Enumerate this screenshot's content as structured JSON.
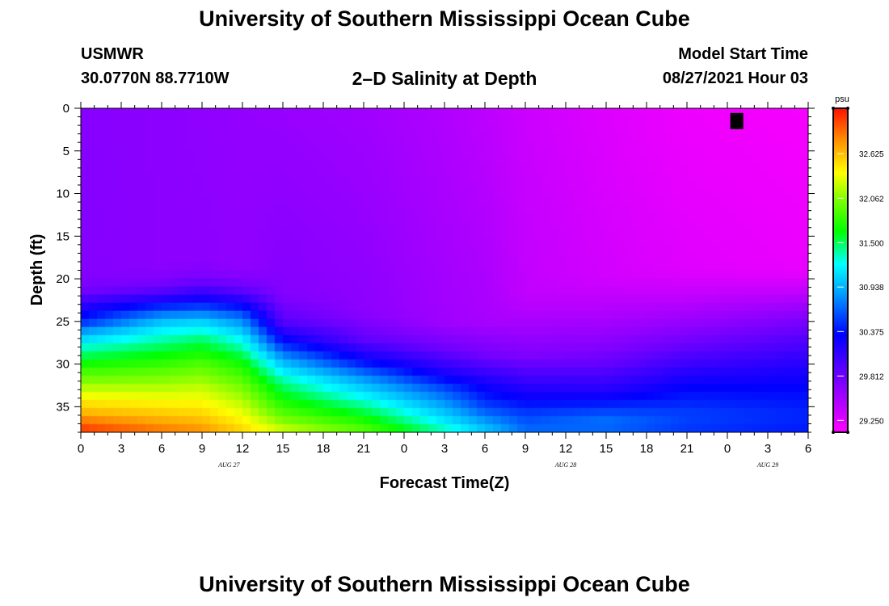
{
  "header": {
    "title": "University of Southern Mississippi Ocean Cube",
    "station": "USMWR",
    "coords": "30.0770N  88.7710W",
    "plot_title": "2–D Salinity at Depth",
    "model_label": "Model Start Time",
    "model_time": "08/27/2021 Hour 03",
    "footer_title": "University of Southern Mississippi Ocean Cube"
  },
  "chart_data": {
    "type": "heatmap",
    "title": "2–D Salinity at Depth",
    "xlabel": "Forecast Time(Z)",
    "ylabel": "Depth (ft)",
    "x_range_hours": [
      0,
      54
    ],
    "y_range_ft": [
      0,
      38
    ],
    "x_ticks": [
      "0",
      "3",
      "6",
      "9",
      "12",
      "15",
      "18",
      "21",
      "0",
      "3",
      "6",
      "9",
      "12",
      "15",
      "18",
      "21",
      "0",
      "3",
      "6"
    ],
    "y_ticks": [
      "0",
      "5",
      "10",
      "15",
      "20",
      "25",
      "30",
      "35"
    ],
    "date_labels": [
      {
        "text": "AUG  27",
        "hour": 11
      },
      {
        "text": "AUG  28",
        "hour": 36
      },
      {
        "text": "AUG  29",
        "hour": 51
      }
    ],
    "colorbar": {
      "unit": "psu",
      "range": [
        29.1,
        33.2
      ],
      "ticks": [
        "32.625",
        "32.062",
        "31.500",
        "30.938",
        "30.375",
        "29.812",
        "29.250"
      ]
    },
    "marker": {
      "hour": 48.7,
      "depth_ft": 1.5,
      "color": "#000000"
    },
    "salinity_profiles": [
      {
        "hour": 0,
        "values": [
          [
            0,
            29.68
          ],
          [
            20,
            29.7
          ],
          [
            21.5,
            29.78
          ],
          [
            23,
            30.1
          ],
          [
            25,
            30.45
          ],
          [
            26.5,
            30.95
          ],
          [
            28,
            31.3
          ],
          [
            30,
            31.7
          ],
          [
            32,
            32.05
          ],
          [
            34,
            32.4
          ],
          [
            36,
            32.7
          ],
          [
            37,
            32.95
          ],
          [
            38,
            33.1
          ]
        ]
      },
      {
        "hour": 6,
        "values": [
          [
            0,
            29.66
          ],
          [
            19,
            29.66
          ],
          [
            21,
            29.8
          ],
          [
            22.5,
            30.2
          ],
          [
            24,
            30.7
          ],
          [
            25.5,
            31.1
          ],
          [
            28,
            31.5
          ],
          [
            31,
            31.95
          ],
          [
            34,
            32.35
          ],
          [
            36,
            32.6
          ],
          [
            38,
            32.9
          ]
        ]
      },
      {
        "hour": 9,
        "values": [
          [
            0,
            29.64
          ],
          [
            18,
            29.66
          ],
          [
            20,
            29.75
          ],
          [
            22,
            30.15
          ],
          [
            23.5,
            30.6
          ],
          [
            25,
            31.05
          ],
          [
            27,
            31.45
          ],
          [
            30,
            31.9
          ],
          [
            33,
            32.25
          ],
          [
            36,
            32.55
          ],
          [
            38,
            32.8
          ]
        ]
      },
      {
        "hour": 12,
        "values": [
          [
            0,
            29.62
          ],
          [
            19,
            29.64
          ],
          [
            21,
            29.8
          ],
          [
            22.5,
            30.15
          ],
          [
            24.5,
            30.7
          ],
          [
            27,
            31.2
          ],
          [
            30,
            31.7
          ],
          [
            33,
            32.05
          ],
          [
            36,
            32.35
          ],
          [
            38,
            32.55
          ]
        ]
      },
      {
        "hour": 15,
        "values": [
          [
            0,
            29.6
          ],
          [
            22,
            29.7
          ],
          [
            25,
            29.9
          ],
          [
            27.5,
            30.4
          ],
          [
            29.5,
            30.9
          ],
          [
            32,
            31.4
          ],
          [
            35,
            31.8
          ],
          [
            37,
            32.1
          ],
          [
            38,
            32.3
          ]
        ]
      },
      {
        "hour": 21,
        "values": [
          [
            0,
            29.56
          ],
          [
            24,
            29.66
          ],
          [
            27,
            29.85
          ],
          [
            29.5,
            30.3
          ],
          [
            31.5,
            30.8
          ],
          [
            34,
            31.25
          ],
          [
            36.5,
            31.7
          ],
          [
            38,
            31.95
          ]
        ]
      },
      {
        "hour": 27,
        "values": [
          [
            0,
            29.48
          ],
          [
            25,
            29.56
          ],
          [
            28,
            29.78
          ],
          [
            31,
            30.2
          ],
          [
            33,
            30.6
          ],
          [
            35,
            30.9
          ],
          [
            37,
            31.2
          ],
          [
            38,
            31.4
          ]
        ]
      },
      {
        "hour": 30,
        "values": [
          [
            0,
            29.42
          ],
          [
            25,
            29.52
          ],
          [
            29,
            29.78
          ],
          [
            32,
            30.2
          ],
          [
            35,
            30.55
          ],
          [
            37,
            30.9
          ],
          [
            38,
            31.05
          ]
        ]
      },
      {
        "hour": 33,
        "values": [
          [
            0,
            29.35
          ],
          [
            22,
            29.4
          ],
          [
            25,
            29.52
          ],
          [
            29,
            29.72
          ],
          [
            31,
            29.95
          ],
          [
            34,
            30.3
          ],
          [
            36,
            30.55
          ],
          [
            38,
            30.7
          ]
        ]
      },
      {
        "hour": 39,
        "values": [
          [
            0,
            29.26
          ],
          [
            20,
            29.32
          ],
          [
            24,
            29.48
          ],
          [
            28,
            29.7
          ],
          [
            30,
            29.85
          ],
          [
            33,
            30.15
          ],
          [
            35.5,
            30.55
          ],
          [
            37,
            30.75
          ],
          [
            38,
            30.6
          ]
        ]
      },
      {
        "hour": 45,
        "values": [
          [
            0,
            29.18
          ],
          [
            19,
            29.25
          ],
          [
            22,
            29.4
          ],
          [
            25,
            29.6
          ],
          [
            27.5,
            29.8
          ],
          [
            30,
            30.05
          ],
          [
            33,
            30.35
          ],
          [
            36,
            30.55
          ],
          [
            38,
            30.5
          ]
        ]
      },
      {
        "hour": 54,
        "values": [
          [
            0,
            29.14
          ],
          [
            19,
            29.2
          ],
          [
            21,
            29.35
          ],
          [
            23,
            29.55
          ],
          [
            25,
            29.75
          ],
          [
            27,
            29.92
          ],
          [
            30,
            30.15
          ],
          [
            33,
            30.35
          ],
          [
            36,
            30.45
          ],
          [
            38,
            30.4
          ]
        ]
      }
    ]
  }
}
